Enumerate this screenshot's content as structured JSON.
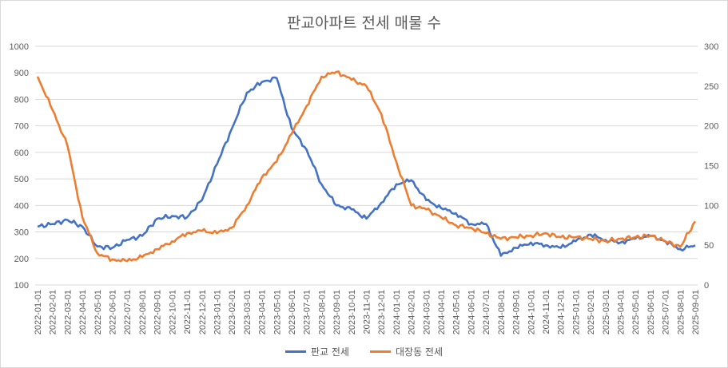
{
  "chart_data": {
    "type": "line",
    "title": "판교아파트 전세 매물 수",
    "x_labels": [
      "2022-01-01",
      "2022-02-01",
      "2022-03-01",
      "2022-04-01",
      "2022-05-01",
      "2022-06-01",
      "2022-07-01",
      "2022-08-01",
      "2022-09-01",
      "2022-10-01",
      "2022-11-01",
      "2022-12-01",
      "2023-01-01",
      "2023-02-01",
      "2023-03-01",
      "2023-04-01",
      "2023-05-01",
      "2023-06-01",
      "2023-07-01",
      "2023-08-01",
      "2023-09-01",
      "2023-10-01",
      "2023-11-01",
      "2023-12-01",
      "2024-01-01",
      "2024-02-01",
      "2024-03-01",
      "2024-04-01",
      "2024-05-01",
      "2024-06-01",
      "2024-07-01",
      "2024-08-01",
      "2024-09-01",
      "2024-10-01",
      "2024-11-01",
      "2024-12-01",
      "2025-01-01",
      "2025-02-01",
      "2025-03-01",
      "2025-04-01",
      "2025-05-01",
      "2025-06-01",
      "2025-07-01",
      "2025-08-01",
      "2025-09-01"
    ],
    "y_left": {
      "min": 100,
      "max": 1000,
      "ticks": [
        100,
        200,
        300,
        400,
        500,
        600,
        700,
        800,
        900,
        1000
      ]
    },
    "y_right": {
      "min": 0,
      "max": 300,
      "ticks": [
        0,
        50,
        100,
        150,
        200,
        250,
        300
      ]
    },
    "grid": true,
    "legend_position": "bottom",
    "series": [
      {
        "name": "판교 전세",
        "axis": "left",
        "color": "#4472C4",
        "values": [
          320,
          330,
          345,
          320,
          245,
          240,
          270,
          285,
          350,
          360,
          355,
          420,
          555,
          690,
          825,
          865,
          880,
          690,
          610,
          480,
          400,
          385,
          350,
          410,
          480,
          495,
          420,
          390,
          370,
          330,
          330,
          210,
          240,
          260,
          250,
          240,
          265,
          290,
          270,
          260,
          275,
          285,
          265,
          235,
          250
        ]
      },
      {
        "name": "대장동 전세",
        "axis": "right",
        "color": "#ED7D31",
        "values": [
          262,
          220,
          175,
          85,
          40,
          32,
          30,
          35,
          45,
          55,
          65,
          68,
          65,
          72,
          100,
          135,
          155,
          190,
          225,
          262,
          268,
          258,
          250,
          215,
          155,
          100,
          95,
          85,
          75,
          72,
          65,
          58,
          60,
          62,
          65,
          60,
          60,
          58,
          55,
          58,
          60,
          62,
          55,
          48,
          80
        ]
      }
    ]
  }
}
